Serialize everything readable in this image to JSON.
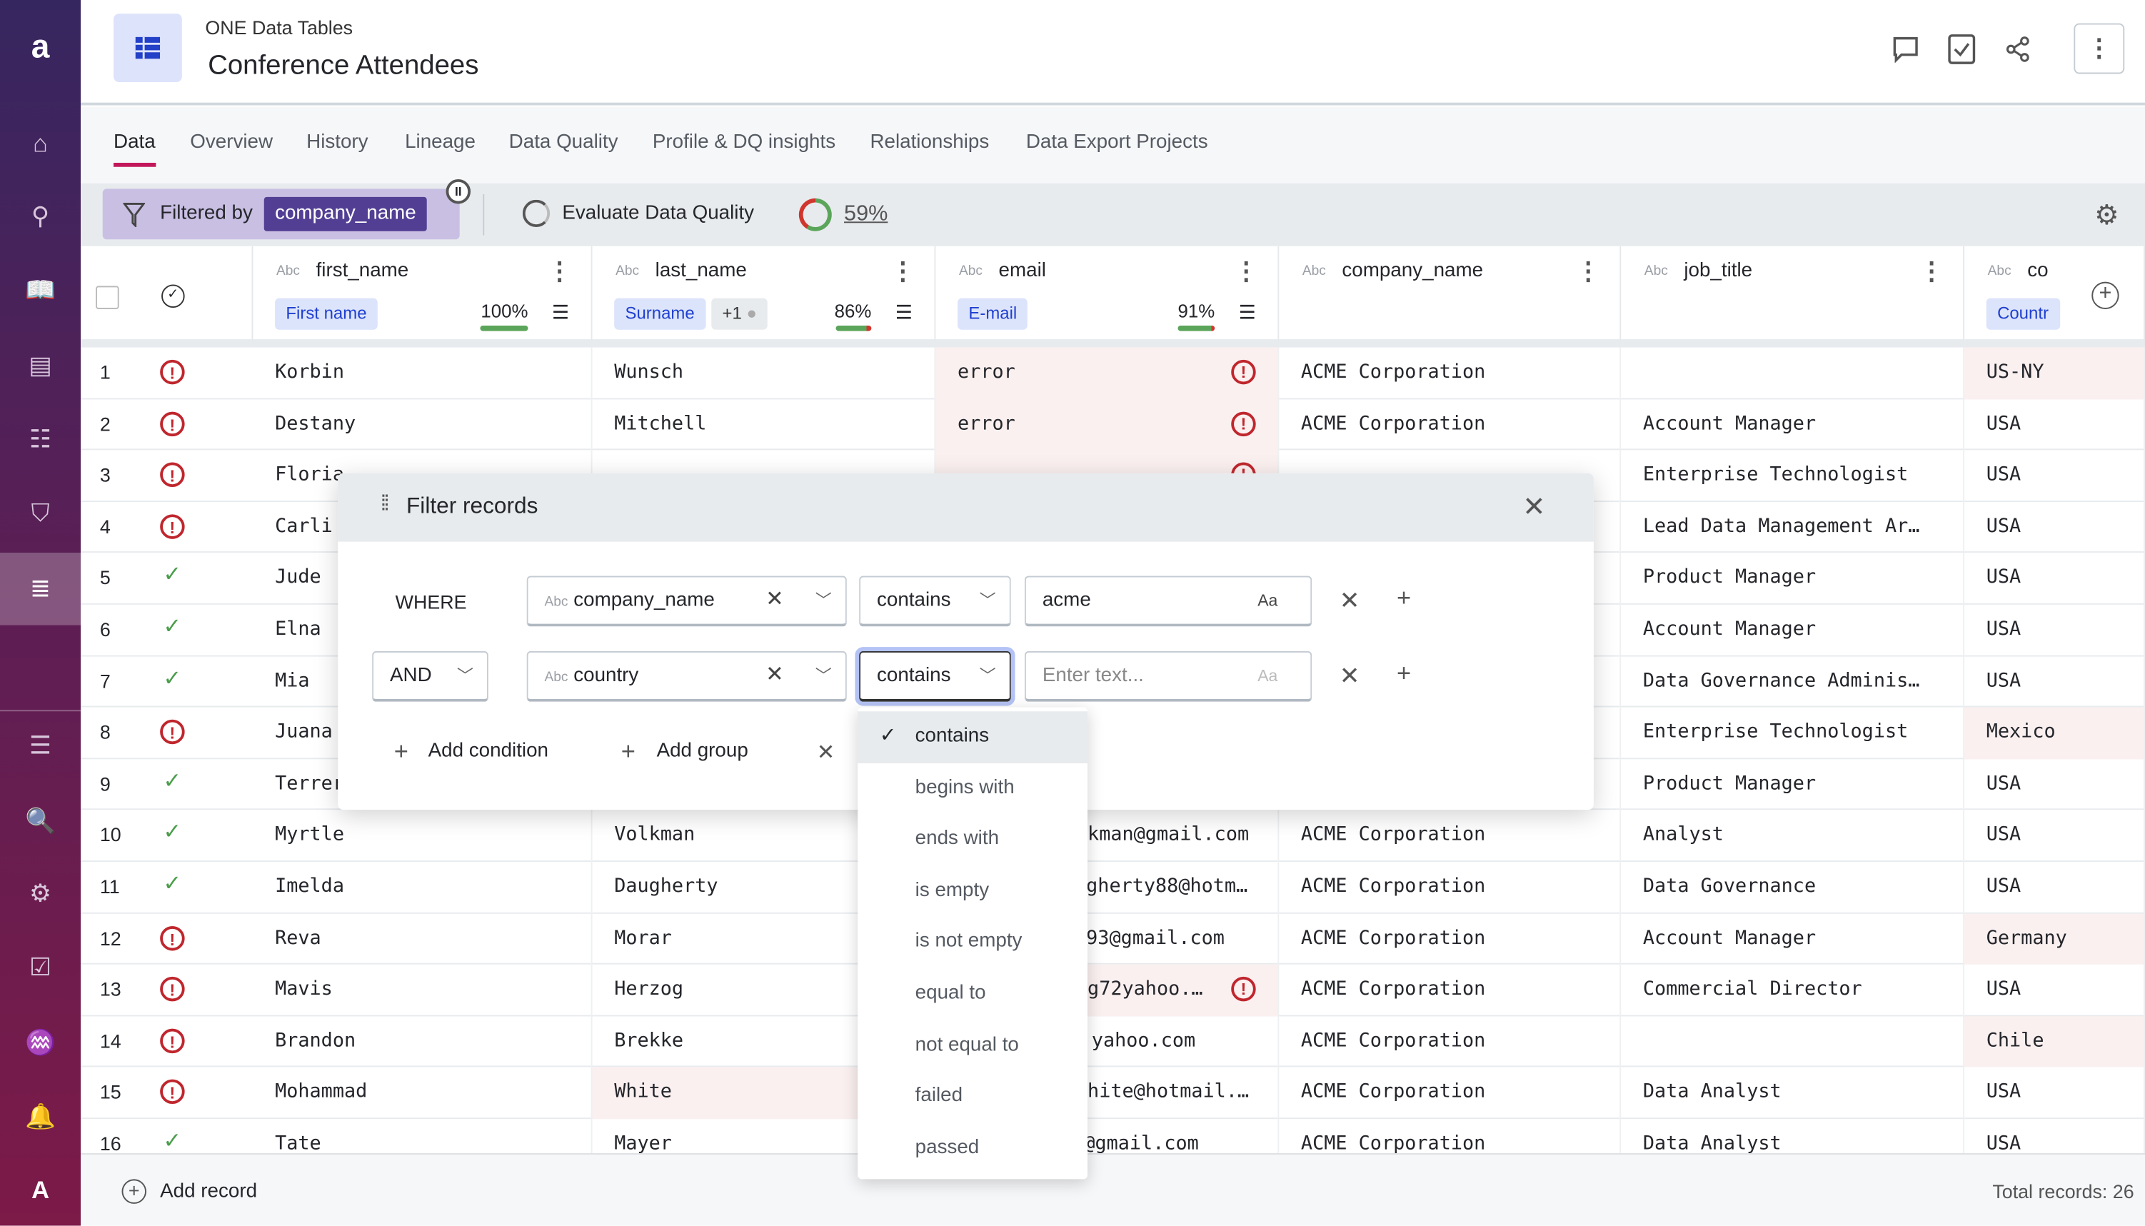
{
  "sidebar": {
    "logo": "a",
    "items": [
      "home-icon",
      "search-icon",
      "book-icon",
      "documents-icon",
      "catalog-icon",
      "shield-icon",
      "data-quality-icon",
      "list-icon",
      "document-search-icon",
      "settings-icon",
      "tasks-icon",
      "monitoring-icon",
      "bell-icon"
    ],
    "active": "data-quality-icon",
    "user_initial": "A",
    "colors": {
      "top": "#362660",
      "bottom": "#7c1a48"
    }
  },
  "header": {
    "breadcrumb": "ONE Data Tables",
    "title": "Conference Attendees",
    "actions": [
      "comment-icon",
      "task-icon",
      "share-icon",
      "more-icon"
    ]
  },
  "tabs": [
    {
      "label": "Data",
      "active": true
    },
    {
      "label": "Overview"
    },
    {
      "label": "History"
    },
    {
      "label": "Lineage"
    },
    {
      "label": "Data Quality"
    },
    {
      "label": "Profile & DQ insights"
    },
    {
      "label": "Relationships"
    },
    {
      "label": "Data Export Projects"
    }
  ],
  "toolbar": {
    "filtered_by": "Filtered by",
    "filter_chip": "company_name",
    "evaluate": "Evaluate Data Quality",
    "dq_score": "59%",
    "dq_score_value": 59
  },
  "columns": [
    {
      "name": "first_name",
      "type": "Abc",
      "term": "First name",
      "quality": "100%",
      "quality_value": 100
    },
    {
      "name": "last_name",
      "type": "Abc",
      "term": "Surname",
      "extra": "+1",
      "quality": "86%",
      "quality_value": 86
    },
    {
      "name": "email",
      "type": "Abc",
      "term": "E-mail",
      "quality": "91%",
      "quality_value": 91
    },
    {
      "name": "company_name",
      "type": "Abc"
    },
    {
      "name": "job_title",
      "type": "Abc"
    },
    {
      "name": "co",
      "type": "Abc",
      "term": "Countr"
    }
  ],
  "rows": [
    {
      "n": "1",
      "s": "err",
      "f": "Korbin",
      "l": "Wunsch",
      "e": "error",
      "ee": true,
      "c": "ACME Corporation",
      "j": "",
      "co": "US-NY",
      "coe": true
    },
    {
      "n": "2",
      "s": "err",
      "f": "Destany",
      "l": "Mitchell",
      "e": "error",
      "ee": true,
      "c": "ACME Corporation",
      "j": "Account Manager",
      "co": "USA"
    },
    {
      "n": "3",
      "s": "err",
      "f": "Floria",
      "l": "",
      "e": "",
      "ee": true,
      "c": "",
      "j": "Enterprise Technologist",
      "co": "USA"
    },
    {
      "n": "4",
      "s": "err",
      "f": "Carli",
      "l": "",
      "e": "",
      "c": "",
      "j": "Lead Data Management Ar…",
      "co": "USA"
    },
    {
      "n": "5",
      "s": "ok",
      "f": "Jude",
      "l": "",
      "e": "",
      "c": "",
      "j": "Product Manager",
      "co": "USA"
    },
    {
      "n": "6",
      "s": "ok",
      "f": "Elna",
      "l": "",
      "e": "",
      "c": "",
      "j": "Account Manager",
      "co": "USA"
    },
    {
      "n": "7",
      "s": "ok",
      "f": "Mia",
      "l": "",
      "e": "",
      "c": "",
      "j": "Data Governance Adminis…",
      "co": "USA"
    },
    {
      "n": "8",
      "s": "err",
      "f": "Juana",
      "l": "",
      "e": "",
      "c": "",
      "j": "Enterprise Technologist",
      "co": "Mexico",
      "coe": true
    },
    {
      "n": "9",
      "s": "ok",
      "f": "Terrer",
      "l": "",
      "e": "",
      "c": "",
      "j": "Product Manager",
      "co": "USA"
    },
    {
      "n": "10",
      "s": "ok",
      "f": "Myrtle",
      "l": "Volkman",
      "e": "kman@gmail.com",
      "c": "ACME Corporation",
      "j": "Analyst",
      "co": "USA"
    },
    {
      "n": "11",
      "s": "ok",
      "f": "Imelda",
      "l": "Daugherty",
      "e": "gherty88@hotm…",
      "c": "ACME Corporation",
      "j": "Data Governance",
      "co": "USA"
    },
    {
      "n": "12",
      "s": "err",
      "f": "Reva",
      "l": "Morar",
      "e": "93@gmail.com",
      "c": "ACME Corporation",
      "j": "Account Manager",
      "co": "Germany",
      "coe": true
    },
    {
      "n": "13",
      "s": "err",
      "f": "Mavis",
      "l": "Herzog",
      "e": "g72yahoo.…",
      "ee": true,
      "c": "ACME Corporation",
      "j": "Commercial Director",
      "co": "USA"
    },
    {
      "n": "14",
      "s": "err",
      "f": "Brandon",
      "l": "Brekke",
      "e": "yahoo.com",
      "c": "ACME Corporation",
      "j": "",
      "co": "Chile",
      "coe": true
    },
    {
      "n": "15",
      "s": "err",
      "f": "Mohammad",
      "l": "White",
      "le": true,
      "e": "hite@hotmail.…",
      "c": "ACME Corporation",
      "j": "Data Analyst",
      "co": "USA"
    },
    {
      "n": "16",
      "s": "ok",
      "f": "Tate",
      "l": "Mayer",
      "e": "@gmail.com",
      "c": "ACME Corporation",
      "j": "Data Analyst",
      "co": "USA"
    }
  ],
  "footer": {
    "add_record": "Add record",
    "total": "Total records: 26"
  },
  "modal": {
    "title": "Filter records",
    "where": "WHERE",
    "cond1": {
      "field": "company_name",
      "field_type": "Abc",
      "operator": "contains",
      "value": "acme",
      "case": "Aa"
    },
    "cond2": {
      "logic": "AND",
      "field": "country",
      "field_type": "Abc",
      "operator": "contains",
      "placeholder": "Enter text...",
      "case": "Aa"
    },
    "add_condition": "Add condition",
    "add_group": "Add group"
  },
  "dropdown": {
    "selected": "contains",
    "options": [
      "contains",
      "begins with",
      "ends with",
      "is empty",
      "is not empty",
      "equal to",
      "not equal to",
      "failed",
      "passed"
    ]
  },
  "colors": {
    "accent": "#c2185b",
    "chip": "#523f94",
    "error": "#c0262d",
    "ok": "#4a9d4a",
    "term": "#1f3fd0"
  }
}
